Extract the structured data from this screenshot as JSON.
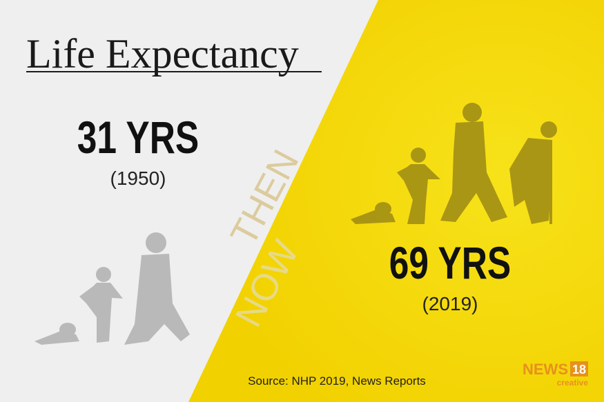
{
  "header": {
    "title": "Life Expectancy"
  },
  "then": {
    "value": "31 YRS",
    "year": "(1950)",
    "label": "THEN"
  },
  "now": {
    "value": "69 YRS",
    "year": "(2019)",
    "label": "NOW"
  },
  "footer": {
    "source": "Source: NHP 2019, News Reports"
  },
  "logo": {
    "name": "NEWS",
    "number": "18",
    "tagline": "creative"
  }
}
